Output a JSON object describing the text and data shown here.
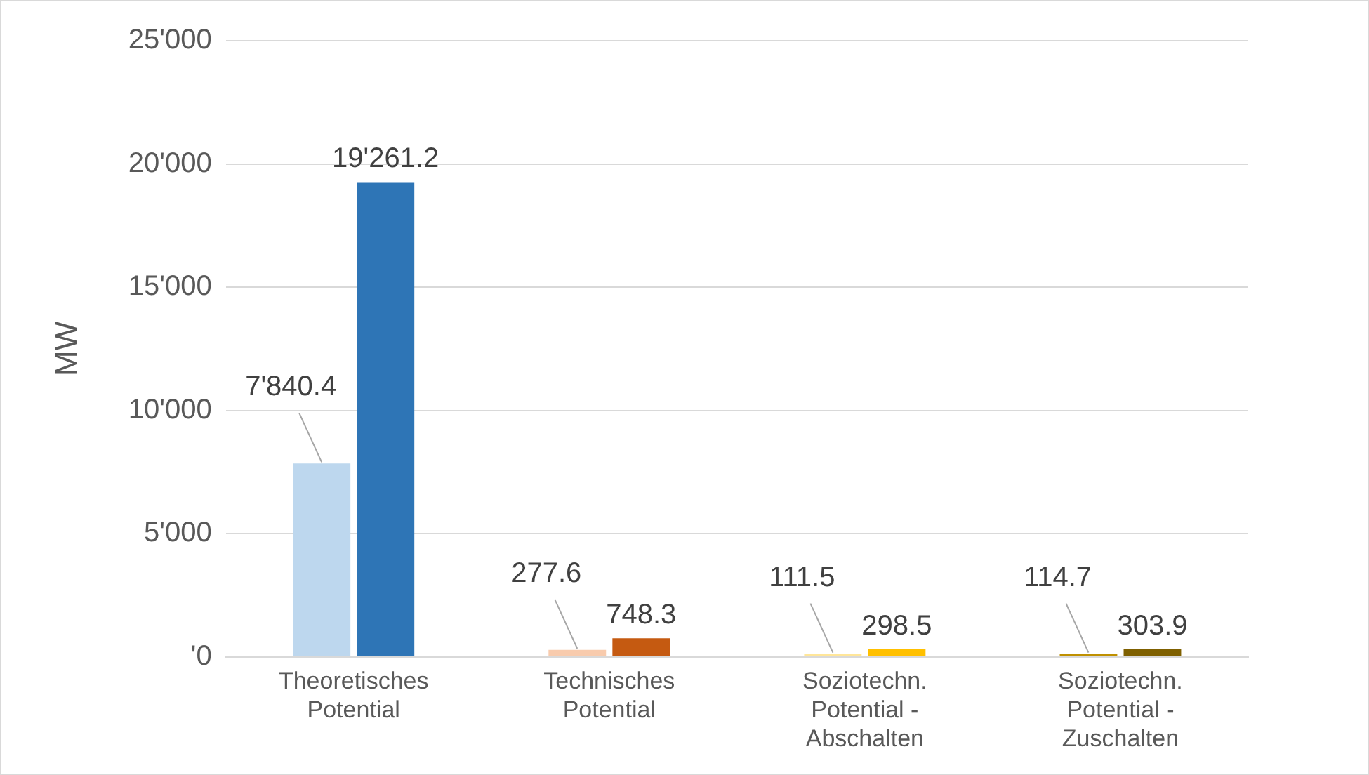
{
  "chart_data": {
    "type": "bar",
    "ylabel": "MW",
    "categories": [
      "Theoretisches\nPotential",
      "Technisches\nPotential",
      "Soziotechn.\nPotential -\nAbschalten",
      "Soziotechn.\nPotential -\nZuschalten"
    ],
    "series": [
      {
        "colors": [
          "#bdd7ee",
          "#f8cbad",
          "#ffe699",
          "#bf9000"
        ],
        "values": [
          7840.4,
          277.6,
          111.5,
          114.7
        ],
        "value_labels": [
          "7'840.4",
          "277.6",
          "111.5",
          "114.7"
        ]
      },
      {
        "colors": [
          "#2e75b6",
          "#c55a11",
          "#ffc000",
          "#7f6000"
        ],
        "values": [
          19261.2,
          748.3,
          298.5,
          303.9
        ],
        "value_labels": [
          "19'261.2",
          "748.3",
          "298.5",
          "303.9"
        ]
      }
    ],
    "ylim": [
      0,
      25000
    ],
    "yticks": [
      {
        "value": 0,
        "label": "'0"
      },
      {
        "value": 5000,
        "label": "5'000"
      },
      {
        "value": 10000,
        "label": "10'000"
      },
      {
        "value": 15000,
        "label": "15'000"
      },
      {
        "value": 20000,
        "label": "20'000"
      },
      {
        "value": 25000,
        "label": "25'000"
      }
    ],
    "grid": "y",
    "legend": false
  }
}
